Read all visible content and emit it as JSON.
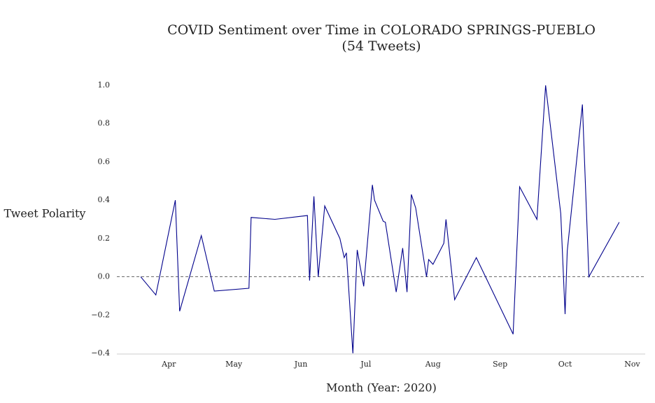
{
  "chart_data": {
    "type": "line",
    "title": "COVID Sentiment over Time in COLORADO SPRINGS-PUEBLO",
    "subtitle": "(54 Tweets)",
    "x_label": "Month (Year: 2020)",
    "y_label": "Tweet Polarity",
    "x": [
      "2020-03-19",
      "2020-03-26",
      "2020-04-04",
      "2020-04-06",
      "2020-04-16",
      "2020-04-22",
      "2020-05-08",
      "2020-05-09",
      "2020-05-20",
      "2020-06-04",
      "2020-06-05",
      "2020-06-07",
      "2020-06-09",
      "2020-06-12",
      "2020-06-19",
      "2020-06-21",
      "2020-06-22",
      "2020-06-25",
      "2020-06-27",
      "2020-06-30",
      "2020-07-04",
      "2020-07-05",
      "2020-07-09",
      "2020-07-10",
      "2020-07-15",
      "2020-07-18",
      "2020-07-20",
      "2020-07-22",
      "2020-07-24",
      "2020-07-29",
      "2020-07-30",
      "2020-08-01",
      "2020-08-06",
      "2020-08-07",
      "2020-08-11",
      "2020-08-21",
      "2020-09-07",
      "2020-09-10",
      "2020-09-18",
      "2020-09-22",
      "2020-09-29",
      "2020-10-01",
      "2020-10-02",
      "2020-10-09",
      "2020-10-12",
      "2020-10-26"
    ],
    "series": [
      {
        "name": "Tweet Polarity",
        "color": "#00008b",
        "values": [
          0.0,
          -0.095,
          0.4,
          -0.18,
          0.215,
          -0.075,
          -0.06,
          0.31,
          0.3,
          0.32,
          -0.02,
          0.42,
          0.0,
          0.37,
          0.2,
          0.1,
          0.125,
          -0.4,
          0.14,
          -0.05,
          0.48,
          0.4,
          0.29,
          0.285,
          -0.08,
          0.15,
          -0.08,
          0.43,
          0.36,
          0.0,
          0.09,
          0.065,
          0.175,
          0.3,
          -0.12,
          0.1,
          -0.3,
          0.47,
          0.3,
          1.0,
          0.33,
          -0.195,
          0.135,
          0.9,
          0.0,
          0.285
        ]
      }
    ],
    "xlim": [
      "2020-03-08",
      "2020-11-07"
    ],
    "xticks": [
      {
        "value": "2020-04-01",
        "label": "Apr"
      },
      {
        "value": "2020-05-01",
        "label": "May"
      },
      {
        "value": "2020-06-01",
        "label": "Jun"
      },
      {
        "value": "2020-07-01",
        "label": "Jul"
      },
      {
        "value": "2020-08-01",
        "label": "Aug"
      },
      {
        "value": "2020-09-01",
        "label": "Sep"
      },
      {
        "value": "2020-10-01",
        "label": "Oct"
      },
      {
        "value": "2020-11-01",
        "label": "Nov"
      }
    ],
    "ylim": [
      -0.4,
      1.0
    ],
    "yticks": [
      {
        "value": -0.4,
        "label": "−0.4"
      },
      {
        "value": -0.2,
        "label": "−0.2"
      },
      {
        "value": 0,
        "label": "0.0"
      },
      {
        "value": 0.2,
        "label": "0.2"
      },
      {
        "value": 0.4,
        "label": "0.4"
      },
      {
        "value": 0.6,
        "label": "0.6"
      },
      {
        "value": 0.8,
        "label": "0.8"
      },
      {
        "value": 1.0,
        "label": "1.0"
      }
    ],
    "zero_line": true
  }
}
